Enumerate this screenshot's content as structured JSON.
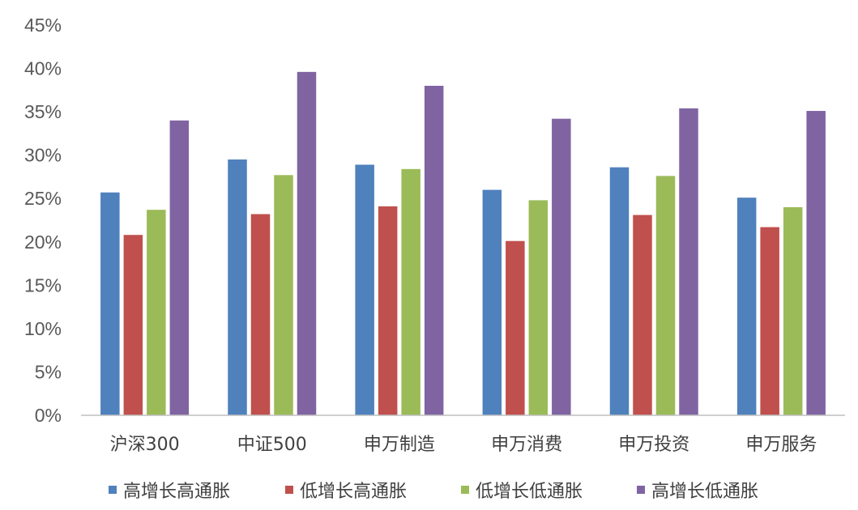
{
  "chart_data": {
    "type": "bar",
    "categories": [
      "沪深300",
      "中证500",
      "申万制造",
      "申万消费",
      "申万投资",
      "申万服务"
    ],
    "series": [
      {
        "name": "高增长高通胀",
        "color": "#4F81BD",
        "values": [
          25.7,
          29.5,
          28.9,
          26.0,
          28.6,
          25.1
        ]
      },
      {
        "name": "低增长高通胀",
        "color": "#C0504D",
        "values": [
          20.8,
          23.2,
          24.1,
          20.1,
          23.1,
          21.7
        ]
      },
      {
        "name": "低增长低通胀",
        "color": "#9BBB59",
        "values": [
          23.7,
          27.7,
          28.4,
          24.8,
          27.6,
          24.0
        ]
      },
      {
        "name": "高增长低通胀",
        "color": "#8064A2",
        "values": [
          34.0,
          39.6,
          38.0,
          34.2,
          35.4,
          35.1
        ]
      }
    ],
    "y_ticks": [
      "0%",
      "5%",
      "10%",
      "15%",
      "20%",
      "25%",
      "30%",
      "35%",
      "40%",
      "45%"
    ],
    "ylim": [
      0,
      45
    ],
    "y_unit": "%",
    "grid": false,
    "legend_position": "bottom"
  }
}
